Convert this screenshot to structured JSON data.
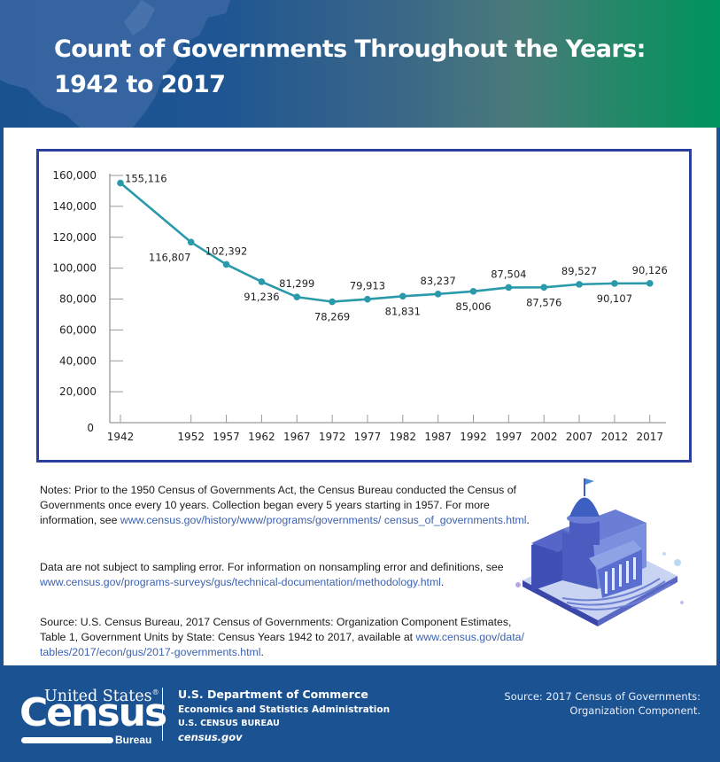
{
  "header": {
    "title_line1": "Count of Governments Throughout the Years:",
    "title_line2": "1942 to 2017"
  },
  "colors": {
    "header_blue": "#1a5290",
    "header_green": "#00945e",
    "chart_frame": "#2b3f9e",
    "line": "#2a9aab",
    "link": "#3c62b0",
    "footer": "#1b5292"
  },
  "chart_data": {
    "type": "line",
    "title": "Count of Governments Throughout the Years: 1942 to 2017",
    "xlabel": "",
    "ylabel": "",
    "ylim": [
      0,
      160000
    ],
    "yticks": [
      0,
      20000,
      40000,
      60000,
      80000,
      100000,
      120000,
      140000,
      160000
    ],
    "ytick_labels": [
      "0",
      "20,000",
      "40,000",
      "60,000",
      "80,000",
      "100,000",
      "120,000",
      "140,000",
      "160,000"
    ],
    "x": [
      1942,
      1952,
      1957,
      1962,
      1967,
      1972,
      1977,
      1982,
      1987,
      1992,
      1997,
      2002,
      2007,
      2012,
      2017
    ],
    "xtick_labels": [
      "1942",
      "1952",
      "1957",
      "1962",
      "1967",
      "1972",
      "1977",
      "1982",
      "1987",
      "1992",
      "1997",
      "2002",
      "2007",
      "2012",
      "2017"
    ],
    "series": [
      {
        "name": "Count of Governments",
        "values": [
          155116,
          116807,
          102392,
          91236,
          81299,
          78269,
          79913,
          81831,
          83237,
          85006,
          87504,
          87576,
          89527,
          90107,
          90126
        ],
        "data_labels": [
          "155,116",
          "116,807",
          "102,392",
          "91,236",
          "81,299",
          "78,269",
          "79,913",
          "81,831",
          "83,237",
          "85,006",
          "87,504",
          "87,576",
          "89,527",
          "90,107",
          "90,126"
        ],
        "label_positions": [
          "right",
          "below-left",
          "above",
          "below",
          "above",
          "below",
          "above",
          "below",
          "above",
          "below",
          "above",
          "below",
          "above",
          "below",
          "above"
        ]
      }
    ],
    "grid": false,
    "legend": "none"
  },
  "notes": {
    "note1_text": "Notes: Prior to the 1950 Census of Governments Act, the Census Bureau conducted the Census of Governments once every 10 years.  Collection began every 5 years starting in 1957. For more information, see ",
    "note1_link": "www.census.gov/history/www/programs/governments/ census_of_governments.html",
    "note1_end": ".",
    "note2_text": "Data are not subject to sampling error. For information on nonsampling error and definitions, see ",
    "note2_link": "www.census.gov/programs-surveys/gus/technical-documentation/methodology.html",
    "note2_end": ".",
    "note3_text": "Source: U.S. Census Bureau, 2017 Census of Governments: Organization Component Estimates, Table 1, Government Units by State: Census Years 1942 to 2017, available at ",
    "note3_link": "www.census.gov/data/ tables/2017/econ/gus/2017-governments.html",
    "note3_end": "."
  },
  "footer": {
    "logo_united_states": "United States",
    "logo_registered": "®",
    "logo_census": "Census",
    "logo_bureau": "Bureau",
    "dept_line1": "U.S. Department of Commerce",
    "dept_line2": "Economics and Statistics Administration",
    "dept_line3": "U.S. CENSUS BUREAU",
    "dept_line4": "census.gov",
    "source_line1": "Source: 2017 Census of Governments:",
    "source_line2": "Organization Component."
  },
  "icons": {
    "illustration": "capitol-building-illustration",
    "map": "us-map-silhouette"
  }
}
